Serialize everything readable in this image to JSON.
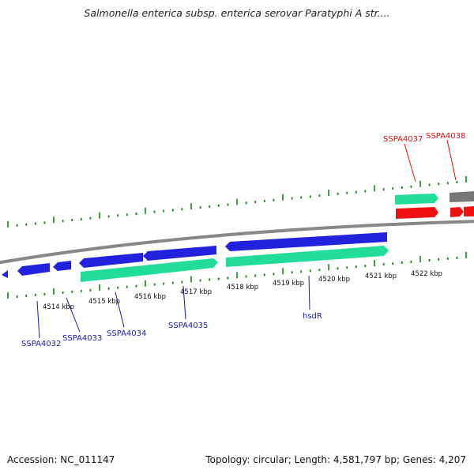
{
  "title": "Salmonella enterica subsp. enterica serovar Paratyphi A str....",
  "footer": {
    "accession": "Accession: NC_011147",
    "summary": "Topology: circular; Length: 4,581,797 bp; Genes: 4,207"
  },
  "colors": {
    "forward_gene": "#2222dd",
    "reverse_gene": "#22dd99",
    "highlight_gene": "#ee1111",
    "backbone": "#888888",
    "tick": "#118811",
    "label_blue": "#1a1aaa",
    "label_red": "#dd1111"
  },
  "ticks": {
    "unit": "kbp",
    "labels": [
      "4514 kbp",
      "4515 kbp",
      "4516 kbp",
      "4517 kbp",
      "4518 kbp",
      "4519 kbp",
      "4520 kbp",
      "4521 kbp",
      "4522 kbp"
    ]
  },
  "genes": [
    {
      "name": "SSPA4032",
      "color": "blue"
    },
    {
      "name": "SSPA4033",
      "color": "blue"
    },
    {
      "name": "SSPA4034",
      "color": "blue"
    },
    {
      "name": "SSPA4035",
      "color": "blue"
    },
    {
      "name": "hsdR",
      "color": "blue"
    },
    {
      "name": "SSPA4037",
      "color": "red"
    },
    {
      "name": "SSPA4038",
      "color": "red"
    }
  ]
}
